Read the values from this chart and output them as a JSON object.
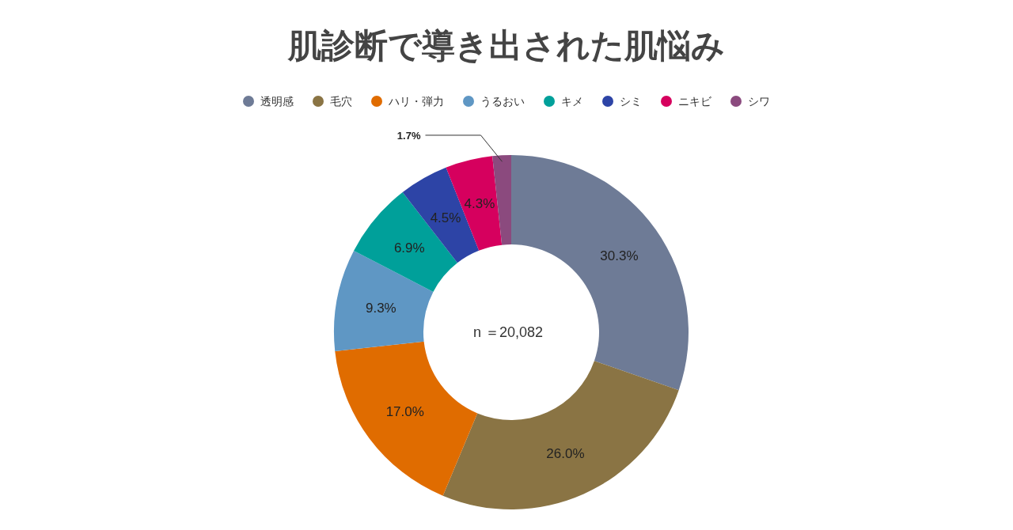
{
  "chart_data": {
    "type": "donut",
    "title": "肌診断で導き出された肌悩み",
    "categories": [
      "透明感",
      "毛穴",
      "ハリ・弾力",
      "うるおい",
      "キメ",
      "シミ",
      "ニキビ",
      "シワ"
    ],
    "values": [
      30.3,
      26.0,
      17.0,
      9.3,
      6.9,
      4.5,
      4.3,
      1.7
    ],
    "value_labels": [
      "30.3%",
      "26.0%",
      "17.0%",
      "9.3%",
      "6.9%",
      "4.5%",
      "4.3%",
      "1.7%"
    ],
    "colors": [
      "#6e7b96",
      "#8a7444",
      "#e06c00",
      "#5f97c4",
      "#00a09a",
      "#2d44a6",
      "#d6005e",
      "#8b4a7e"
    ],
    "legend": "top",
    "annotations": [
      "n ＝20,082"
    ]
  }
}
